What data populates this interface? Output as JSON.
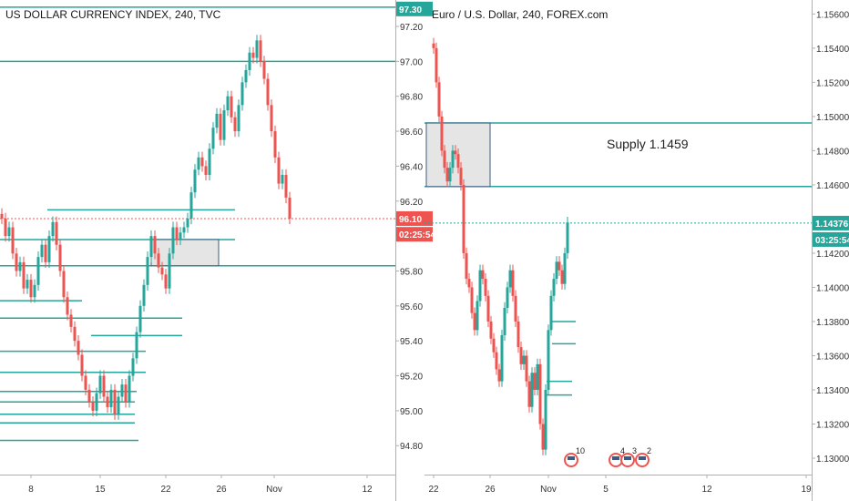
{
  "colors": {
    "up": "#26a69a",
    "down": "#ef5350",
    "level": "#26a69a",
    "price_tag": "#ef5350",
    "price_tag_teal": "#26a69a",
    "zone_fill": "#e0e0e0",
    "zone_border": "#3d5a80",
    "current_line_red": "#ef5350",
    "current_line_teal": "#26a69a"
  },
  "chart_data": [
    {
      "type": "candlestick",
      "title": "US DOLLAR CURRENCY INDEX, 240, TVC",
      "ylim": [
        94.65,
        97.32
      ],
      "y_ticks": [
        "97.20",
        "97.00",
        "96.80",
        "96.60",
        "96.40",
        "96.20",
        "95.80",
        "95.60",
        "95.40",
        "95.20",
        "95.00",
        "94.80"
      ],
      "x_ticks": [
        "8",
        "15",
        "22",
        "26",
        "Nov",
        "12"
      ],
      "price_tags": [
        {
          "value": 97.3,
          "label": "97.30",
          "color": "teal"
        },
        {
          "value": 96.1,
          "label": "96.10",
          "color": "red"
        },
        {
          "value": 96.01,
          "label": "02:25:54",
          "color": "red"
        }
      ],
      "current_price": 96.1,
      "horizontal_levels": [
        97.31,
        97.0,
        96.15,
        95.98,
        95.83,
        95.63,
        95.53,
        95.43,
        95.34,
        95.22,
        95.11,
        95.05,
        94.98,
        94.93,
        94.83
      ],
      "zones": [
        {
          "y_top": 95.98,
          "y_bottom": 95.83
        }
      ],
      "series_close": [
        96.1,
        96.0,
        96.05,
        95.9,
        95.8,
        95.85,
        95.7,
        95.75,
        95.65,
        95.72,
        95.88,
        95.95,
        95.85,
        96.0,
        96.08,
        95.95,
        95.8,
        95.65,
        95.55,
        95.48,
        95.4,
        95.32,
        95.2,
        95.12,
        95.05,
        95.0,
        95.1,
        95.2,
        95.08,
        95.02,
        95.12,
        94.98,
        95.08,
        95.15,
        95.05,
        95.2,
        95.3,
        95.45,
        95.6,
        95.72,
        95.88,
        96.0,
        95.9,
        95.82,
        95.78,
        95.7,
        95.9,
        96.05,
        95.98,
        96.02,
        96.05,
        96.1,
        96.25,
        96.38,
        96.45,
        96.4,
        96.35,
        96.5,
        96.62,
        96.7,
        96.55,
        96.72,
        96.8,
        96.68,
        96.6,
        96.75,
        96.88,
        96.95,
        97.05,
        97.02,
        97.12,
        97.0,
        96.9,
        96.75,
        96.6,
        96.45,
        96.3,
        96.35,
        96.22,
        96.1
      ]
    },
    {
      "type": "candlestick",
      "title": "Euro / U.S. Dollar, 240, FOREX.com",
      "ylim": [
        1.1292,
        1.1565
      ],
      "y_ticks": [
        "1.15600",
        "1.15400",
        "1.15200",
        "1.15000",
        "1.14800",
        "1.14600",
        "1.14200",
        "1.14000",
        "1.13800",
        "1.13600",
        "1.13400",
        "1.13200",
        "1.13000"
      ],
      "x_ticks": [
        "22",
        "26",
        "Nov",
        "5",
        "12",
        "19"
      ],
      "price_tags": [
        {
          "value": 1.14376,
          "label": "1.14376",
          "color": "teal"
        },
        {
          "value": 1.1428,
          "label": "03:25:54",
          "color": "teal"
        }
      ],
      "current_price": 1.14376,
      "horizontal_levels": [
        1.14962,
        1.1459,
        1.138,
        1.1367,
        1.1345,
        1.1337
      ],
      "zones": [
        {
          "y_top": 1.14962,
          "y_bottom": 1.1459,
          "label": "Supply 1.1459"
        }
      ],
      "annotations": [
        "Supply 1.1459"
      ],
      "event_badges": [
        "10",
        "4",
        "3",
        "2"
      ],
      "series_close": [
        1.154,
        1.152,
        1.15,
        1.148,
        1.147,
        1.1462,
        1.147,
        1.148,
        1.1478,
        1.147,
        1.146,
        1.142,
        1.1405,
        1.14,
        1.1385,
        1.1375,
        1.1392,
        1.141,
        1.1405,
        1.1395,
        1.138,
        1.137,
        1.1362,
        1.1352,
        1.1345,
        1.1372,
        1.1388,
        1.14,
        1.141,
        1.1395,
        1.138,
        1.1365,
        1.1355,
        1.136,
        1.1345,
        1.133,
        1.135,
        1.134,
        1.1355,
        1.132,
        1.1305,
        1.134,
        1.1375,
        1.1395,
        1.1405,
        1.1415,
        1.141,
        1.1402,
        1.142,
        1.1438
      ]
    }
  ]
}
